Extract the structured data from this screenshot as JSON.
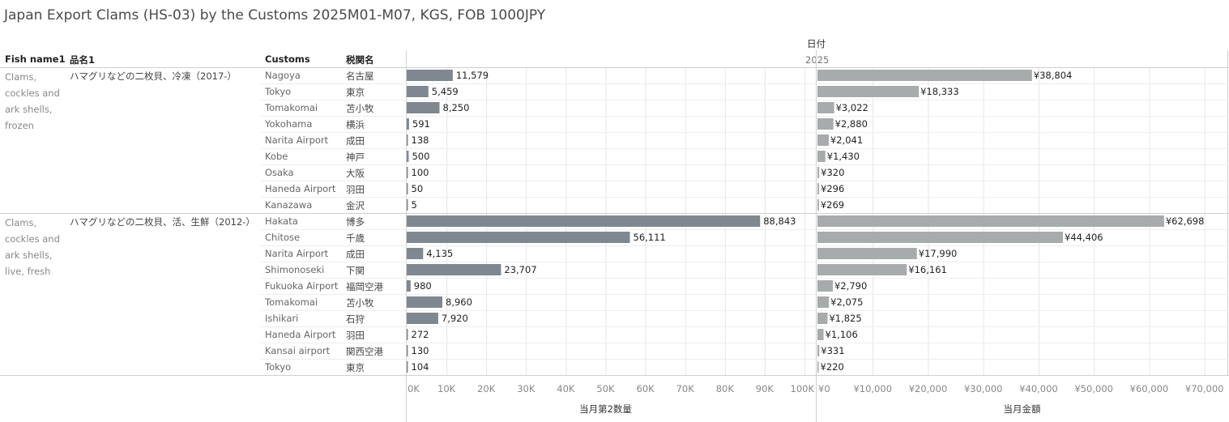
{
  "title": "Japan Export Clams (HS-03) by the Customs 2025M01-M07, KGS, FOB 1000JPY",
  "headers": {
    "fish_name": "Fish name1",
    "product": "品名1",
    "customs": "Customs",
    "customs_jp": "税関名",
    "date": "日付",
    "date_value": "2025"
  },
  "colors": {
    "qty_bar": "#7f8790",
    "amount_bar": "#a7abab",
    "grid": "#e6e6e6",
    "divider": "#d0d0d0"
  },
  "chart_data": {
    "type": "bar",
    "orientation": "horizontal",
    "groups": [
      {
        "fish": "Clams, cockles and ark shells, frozen",
        "fish_lines": [
          "Clams,",
          "cockles and",
          "ark shells,",
          "frozen"
        ],
        "product": "ハマグリなどの二枚貝、冷凍（2017-）",
        "rows": [
          {
            "customs": "Nagoya",
            "customs_jp": "名古屋",
            "qty": 11579,
            "qty_label": "11,579",
            "amount": 38804,
            "amount_label": "¥38,804"
          },
          {
            "customs": "Tokyo",
            "customs_jp": "東京",
            "qty": 5459,
            "qty_label": "5,459",
            "amount": 18333,
            "amount_label": "¥18,333"
          },
          {
            "customs": "Tomakomai",
            "customs_jp": "苫小牧",
            "qty": 8250,
            "qty_label": "8,250",
            "amount": 3022,
            "amount_label": "¥3,022"
          },
          {
            "customs": "Yokohama",
            "customs_jp": "横浜",
            "qty": 591,
            "qty_label": "591",
            "amount": 2880,
            "amount_label": "¥2,880"
          },
          {
            "customs": "Narita Airport",
            "customs_jp": "成田",
            "qty": 138,
            "qty_label": "138",
            "amount": 2041,
            "amount_label": "¥2,041"
          },
          {
            "customs": "Kobe",
            "customs_jp": "神戸",
            "qty": 500,
            "qty_label": "500",
            "amount": 1430,
            "amount_label": "¥1,430"
          },
          {
            "customs": "Osaka",
            "customs_jp": "大阪",
            "qty": 100,
            "qty_label": "100",
            "amount": 320,
            "amount_label": "¥320"
          },
          {
            "customs": "Haneda Airport",
            "customs_jp": "羽田",
            "qty": 50,
            "qty_label": "50",
            "amount": 296,
            "amount_label": "¥296"
          },
          {
            "customs": "Kanazawa",
            "customs_jp": "金沢",
            "qty": 5,
            "qty_label": "5",
            "amount": 269,
            "amount_label": "¥269"
          }
        ]
      },
      {
        "fish": "Clams, cockles and ark shells, live, fresh",
        "fish_lines": [
          "Clams,",
          "cockles and",
          "ark shells,",
          "live, fresh"
        ],
        "product": "ハマグリなどの二枚貝、活、生鮮（2012-）",
        "rows": [
          {
            "customs": "Hakata",
            "customs_jp": "博多",
            "qty": 88843,
            "qty_label": "88,843",
            "amount": 62698,
            "amount_label": "¥62,698"
          },
          {
            "customs": "Chitose",
            "customs_jp": "千歳",
            "qty": 56111,
            "qty_label": "56,111",
            "amount": 44406,
            "amount_label": "¥44,406"
          },
          {
            "customs": "Narita Airport",
            "customs_jp": "成田",
            "qty": 4135,
            "qty_label": "4,135",
            "amount": 17990,
            "amount_label": "¥17,990"
          },
          {
            "customs": "Shimonoseki",
            "customs_jp": "下関",
            "qty": 23707,
            "qty_label": "23,707",
            "amount": 16161,
            "amount_label": "¥16,161"
          },
          {
            "customs": "Fukuoka Airport",
            "customs_jp": "福岡空港",
            "qty": 980,
            "qty_label": "980",
            "amount": 2790,
            "amount_label": "¥2,790"
          },
          {
            "customs": "Tomakomai",
            "customs_jp": "苫小牧",
            "qty": 8960,
            "qty_label": "8,960",
            "amount": 2075,
            "amount_label": "¥2,075"
          },
          {
            "customs": "Ishikari",
            "customs_jp": "石狩",
            "qty": 7920,
            "qty_label": "7,920",
            "amount": 1825,
            "amount_label": "¥1,825"
          },
          {
            "customs": "Haneda Airport",
            "customs_jp": "羽田",
            "qty": 272,
            "qty_label": "272",
            "amount": 1106,
            "amount_label": "¥1,106"
          },
          {
            "customs": "Kansai airport",
            "customs_jp": "関西空港",
            "qty": 130,
            "qty_label": "130",
            "amount": 331,
            "amount_label": "¥331"
          },
          {
            "customs": "Tokyo",
            "customs_jp": "東京",
            "qty": 104,
            "qty_label": "104",
            "amount": 220,
            "amount_label": "¥220"
          }
        ]
      }
    ],
    "qty_axis": {
      "title": "当月第2数量",
      "range": [
        0,
        100000
      ],
      "ticks": [
        0,
        10000,
        20000,
        30000,
        40000,
        50000,
        60000,
        70000,
        80000,
        90000,
        100000
      ],
      "tick_labels": [
        "0K",
        "10K",
        "20K",
        "30K",
        "40K",
        "50K",
        "60K",
        "70K",
        "80K",
        "90K",
        "100K"
      ]
    },
    "amount_axis": {
      "title": "当月金額",
      "range": [
        0,
        74000
      ],
      "ticks": [
        0,
        10000,
        20000,
        30000,
        40000,
        50000,
        60000,
        70000
      ],
      "tick_labels": [
        "¥0",
        "¥10,000",
        "¥20,000",
        "¥30,000",
        "¥40,000",
        "¥50,000",
        "¥60,000",
        "¥70,000"
      ]
    },
    "grid": true
  }
}
